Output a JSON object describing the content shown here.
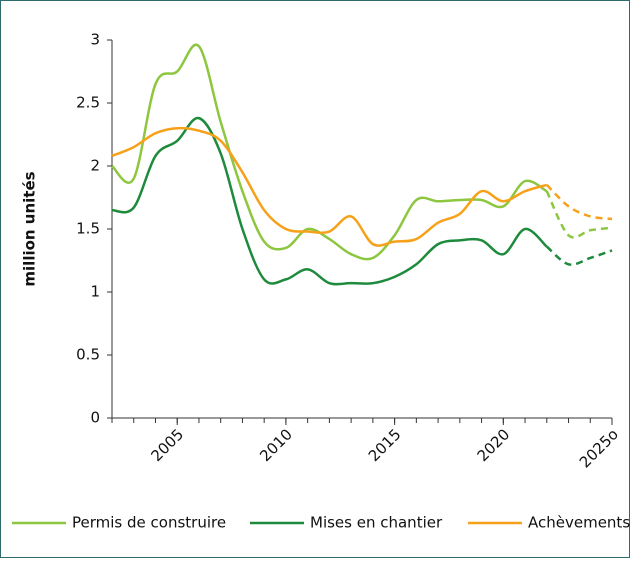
{
  "chart_data": {
    "type": "line",
    "y_label": "million unités",
    "x": [
      2002,
      2003,
      2004,
      2005,
      2006,
      2007,
      2008,
      2009,
      2010,
      2011,
      2012,
      2013,
      2014,
      2015,
      2016,
      2017,
      2018,
      2019,
      2020,
      2021,
      2022,
      2023,
      2024,
      2025
    ],
    "series": [
      {
        "name": "Permis de construire",
        "color": "#8dc63f",
        "values": [
          2.0,
          1.9,
          2.65,
          2.75,
          2.95,
          2.35,
          1.8,
          1.4,
          1.35,
          1.5,
          1.42,
          1.3,
          1.27,
          1.45,
          1.73,
          1.72,
          1.73,
          1.73,
          1.68,
          1.88,
          1.8,
          1.45,
          1.49,
          1.51
        ]
      },
      {
        "name": "Mises en chantier",
        "color": "#1e8a3c",
        "values": [
          1.65,
          1.67,
          2.08,
          2.2,
          2.38,
          2.1,
          1.5,
          1.1,
          1.1,
          1.18,
          1.07,
          1.07,
          1.07,
          1.12,
          1.22,
          1.38,
          1.41,
          1.41,
          1.3,
          1.5,
          1.36,
          1.22,
          1.27,
          1.33
        ]
      },
      {
        "name": "Achèvements",
        "color": "#f7a11a",
        "values": [
          2.08,
          2.15,
          2.26,
          2.3,
          2.28,
          2.2,
          1.95,
          1.65,
          1.5,
          1.48,
          1.48,
          1.6,
          1.38,
          1.4,
          1.42,
          1.55,
          1.62,
          1.8,
          1.72,
          1.8,
          1.85,
          1.68,
          1.6,
          1.58
        ]
      }
    ],
    "dashed_from_x": 2022,
    "xlim": [
      2002,
      2025
    ],
    "xticks": [
      2005,
      2010,
      2015,
      2020,
      {
        "value": 2025,
        "label": "2025o"
      }
    ],
    "ylim": [
      0,
      3
    ],
    "yticks": [
      0,
      0.5,
      1,
      1.5,
      2,
      2.5,
      3
    ],
    "grid": false,
    "legend": "bottom"
  }
}
